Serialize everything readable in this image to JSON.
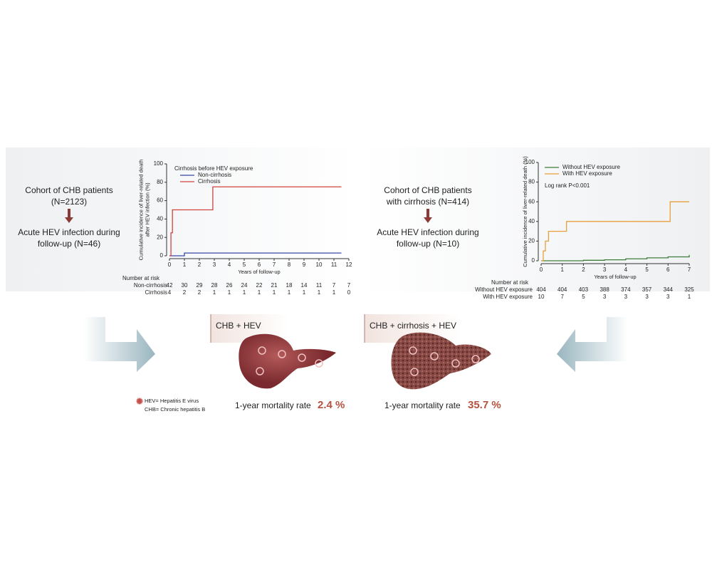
{
  "left_panel": {
    "lines": [
      "Cohort of CHB patients",
      "(N=2123)",
      "Acute HEV infection during",
      "follow-up (N=46)"
    ]
  },
  "right_panel": {
    "lines": [
      "Cohort of CHB patients",
      "with cirrhosis (N=414)",
      "Acute HEV infection during",
      "follow-up (N=10)"
    ]
  },
  "outcomes": [
    {
      "label": "CHB + HEV",
      "rate_label": "1-year mortality rate",
      "rate": "2.4 %"
    },
    {
      "label": "CHB + cirrhosis + HEV",
      "rate_label": "1-year mortality rate",
      "rate": "35.7 %"
    }
  ],
  "notes": [
    "HEV= Hepatitis E virus",
    "CHB= Chronic hepatitis B"
  ],
  "chart_data": [
    {
      "type": "line",
      "step": true,
      "y_label": [
        "Cumulative incidence of liver-related death",
        "after HEV infection (%)"
      ],
      "x_label": "Years of follow-up",
      "legend_title": "Cirrhosis before HEV exposure",
      "xlim": [
        0,
        12
      ],
      "xticks": [
        0,
        1,
        2,
        3,
        4,
        5,
        6,
        7,
        8,
        9,
        10,
        11,
        12
      ],
      "ylim": [
        0,
        100
      ],
      "yticks": [
        0,
        20,
        40,
        60,
        80,
        100
      ],
      "series": [
        {
          "name": "Non-cirrhosis",
          "color": "#3a47a8",
          "x": [
            0,
            1,
            11.5
          ],
          "values": [
            0,
            3,
            3
          ]
        },
        {
          "name": "Cirrhosis",
          "color": "#d0433f",
          "x": [
            0,
            0.1,
            0.2,
            2.9,
            11.5
          ],
          "values": [
            0,
            25,
            50,
            75,
            75
          ]
        }
      ],
      "risk_title": "Number at risk",
      "risk": [
        {
          "name": "Non-cirrhosis",
          "values": [
            42,
            30,
            29,
            28,
            26,
            24,
            22,
            21,
            18,
            14,
            11,
            7,
            7
          ]
        },
        {
          "name": "Cirrhosis",
          "values": [
            4,
            2,
            2,
            1,
            1,
            1,
            1,
            1,
            1,
            1,
            1,
            1,
            0
          ]
        }
      ]
    },
    {
      "type": "line",
      "step": true,
      "y_label": [
        "Cumulative incidence of liver-related death (%)"
      ],
      "x_label": "Years of follow-up",
      "annotation": "Log rank P<0.001",
      "xlim": [
        0,
        7
      ],
      "xticks": [
        0,
        1,
        2,
        3,
        4,
        5,
        6,
        7
      ],
      "ylim": [
        0,
        100
      ],
      "yticks": [
        0,
        20,
        40,
        60,
        80,
        100
      ],
      "series": [
        {
          "name": "Without HEV exposure",
          "color": "#3f7d3a",
          "x": [
            0,
            1,
            2,
            3,
            4,
            5,
            6,
            7
          ],
          "values": [
            0,
            0,
            0.5,
            1,
            2,
            3,
            4,
            6
          ]
        },
        {
          "name": "With HEV exposure",
          "color": "#e8a03c",
          "x": [
            0,
            0.1,
            0.2,
            0.35,
            1.2,
            6.1,
            7
          ],
          "values": [
            0,
            10,
            20,
            30,
            40,
            60,
            60
          ]
        }
      ],
      "risk_title": "Number at risk",
      "risk": [
        {
          "name": "Without HEV exposure",
          "values": [
            404,
            404,
            403,
            388,
            374,
            357,
            344,
            325
          ]
        },
        {
          "name": "With HEV exposure",
          "values": [
            10,
            7,
            5,
            3,
            3,
            3,
            3,
            1
          ]
        }
      ]
    }
  ]
}
